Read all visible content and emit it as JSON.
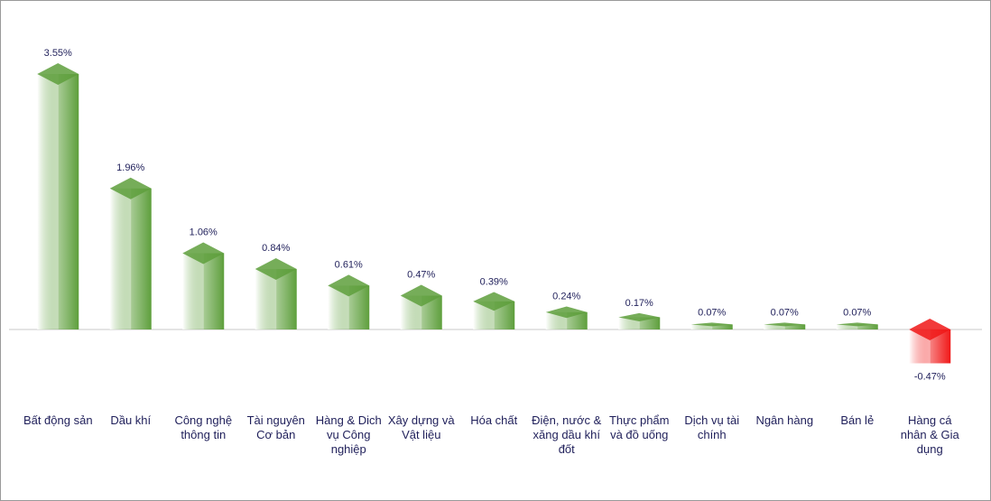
{
  "chart_data": {
    "type": "bar",
    "categories": [
      "Bất động sản",
      "Dầu khí",
      "Công nghệ thông tin",
      "Tài nguyên Cơ bản",
      "Hàng & Dich vụ Công nghiệp",
      "Xây dựng và Vật liệu",
      "Hóa chất",
      "Điện, nước & xăng dầu khí đốt",
      "Thực phẩm và đồ uống",
      "Dịch vụ tài chính",
      "Ngân hàng",
      "Bán lẻ",
      "Hàng cá nhân & Gia dụng"
    ],
    "values": [
      3.55,
      1.96,
      1.06,
      0.84,
      0.61,
      0.47,
      0.39,
      0.24,
      0.17,
      0.07,
      0.07,
      0.07,
      -0.47
    ],
    "value_labels": [
      "3.55%",
      "1.96%",
      "1.06%",
      "0.84%",
      "0.61%",
      "0.47%",
      "0.39%",
      "0.24%",
      "0.17%",
      "0.07%",
      "0.07%",
      "0.07%",
      "-0.47%"
    ],
    "color": "#5e9f3c",
    "negative_color": "#f01818"
  }
}
